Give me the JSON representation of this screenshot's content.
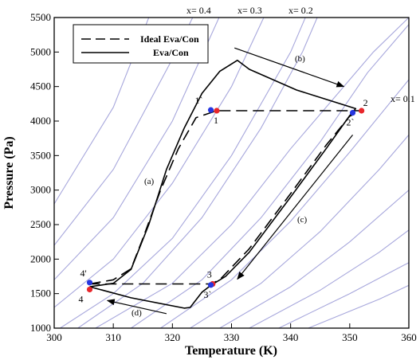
{
  "chart_data": {
    "type": "line",
    "xlabel": "Temperature (K)",
    "ylabel": "Pressure (Pa)",
    "xlim": [
      300,
      360
    ],
    "ylim": [
      1000,
      5500
    ],
    "x_ticks": [
      "300",
      "310",
      "320",
      "330",
      "340",
      "350",
      "360"
    ],
    "y_ticks": [
      "1000",
      "1500",
      "2000",
      "2500",
      "3000",
      "3500",
      "4000",
      "4500",
      "5000",
      "5500"
    ],
    "grid": false,
    "legend": {
      "placement": "top-left",
      "entries": [
        "Ideal Eva/Con",
        "Eva/Con"
      ]
    },
    "colors": {
      "isoline": "#a7a7dc",
      "red_point": "#e8262b",
      "blue_point": "#2636e0",
      "curve": "#000000"
    },
    "isolines": [
      {
        "label": "x= 0.4",
        "points": [
          [
            300,
            1700
          ],
          [
            310,
            2600
          ],
          [
            320,
            4000
          ],
          [
            330,
            5900
          ]
        ]
      },
      {
        "label": "x= 0.3",
        "points": [
          [
            300,
            1300
          ],
          [
            310,
            2000
          ],
          [
            320,
            3100
          ],
          [
            330,
            4500
          ],
          [
            336,
            5600
          ]
        ]
      },
      {
        "label": "x= 0.2",
        "points": [
          [
            301,
            1000
          ],
          [
            310,
            1500
          ],
          [
            320,
            2300
          ],
          [
            330,
            3500
          ],
          [
            340,
            5000
          ],
          [
            343,
            5600
          ]
        ]
      },
      {
        "label": "x= 0.1",
        "points": [
          [
            307,
            1000
          ],
          [
            320,
            1650
          ],
          [
            330,
            2500
          ],
          [
            340,
            3600
          ],
          [
            350,
            4600
          ],
          [
            354,
            5000
          ],
          [
            360,
            5500
          ]
        ]
      },
      {
        "label": "",
        "points": [
          [
            304,
            1000
          ],
          [
            315,
            1650
          ],
          [
            325,
            2600
          ],
          [
            335,
            3900
          ],
          [
            342,
            5000
          ],
          [
            345,
            5600
          ]
        ]
      },
      {
        "label": "",
        "points": [
          [
            313,
            1000
          ],
          [
            325,
            1700
          ],
          [
            335,
            2600
          ],
          [
            345,
            3700
          ],
          [
            353,
            4700
          ],
          [
            360,
            5400
          ]
        ]
      },
      {
        "label": "",
        "points": [
          [
            318,
            1000
          ],
          [
            330,
            1700
          ],
          [
            340,
            2550
          ],
          [
            350,
            3550
          ],
          [
            360,
            4600
          ]
        ]
      },
      {
        "label": "",
        "points": [
          [
            323,
            1000
          ],
          [
            335,
            1650
          ],
          [
            345,
            2400
          ],
          [
            355,
            3300
          ],
          [
            362,
            4000
          ]
        ]
      },
      {
        "label": "",
        "points": [
          [
            328,
            1000
          ],
          [
            340,
            1600
          ],
          [
            350,
            2250
          ],
          [
            360,
            3000
          ]
        ]
      },
      {
        "label": "",
        "points": [
          [
            333,
            1000
          ],
          [
            345,
            1550
          ],
          [
            355,
            2100
          ],
          [
            362,
            2550
          ]
        ]
      },
      {
        "label": "",
        "points": [
          [
            338,
            1000
          ],
          [
            350,
            1500
          ],
          [
            360,
            1950
          ]
        ]
      },
      {
        "label": "",
        "points": [
          [
            343,
            1000
          ],
          [
            355,
            1420
          ],
          [
            362,
            1700
          ]
        ]
      },
      {
        "label": "",
        "points": [
          [
            300,
            2200
          ],
          [
            310,
            3300
          ],
          [
            320,
            4900
          ],
          [
            324,
            5600
          ]
        ]
      },
      {
        "label": "",
        "points": [
          [
            300,
            2800
          ],
          [
            310,
            4200
          ],
          [
            316,
            5500
          ]
        ]
      }
    ],
    "series": [
      {
        "name": "Ideal Eva/Con",
        "style": "dashed",
        "points": [
          [
            306,
            1640
          ],
          [
            310,
            1700
          ],
          [
            313,
            1860
          ],
          [
            315,
            2300
          ],
          [
            318,
            3000
          ],
          [
            321,
            3600
          ],
          [
            324,
            4050
          ],
          [
            327.5,
            4150
          ],
          [
            352,
            4150
          ],
          [
            350,
            4070
          ],
          [
            346,
            3650
          ],
          [
            340,
            2950
          ],
          [
            333,
            2150
          ],
          [
            328,
            1700
          ],
          [
            326.5,
            1640
          ],
          [
            306,
            1640
          ]
        ]
      },
      {
        "name": "Eva/Con",
        "style": "solid",
        "points": [
          [
            306,
            1600
          ],
          [
            310,
            1650
          ],
          [
            313,
            1850
          ],
          [
            316,
            2500
          ],
          [
            319,
            3300
          ],
          [
            322,
            3900
          ],
          [
            325,
            4400
          ],
          [
            328,
            4720
          ],
          [
            331,
            4880
          ],
          [
            333,
            4750
          ],
          [
            341,
            4450
          ],
          [
            351,
            4180
          ],
          [
            350,
            4080
          ],
          [
            346,
            3600
          ],
          [
            340,
            2900
          ],
          [
            333,
            2100
          ],
          [
            329,
            1750
          ],
          [
            326.5,
            1620
          ],
          [
            325,
            1520
          ],
          [
            323,
            1300
          ],
          [
            322,
            1290
          ],
          [
            313,
            1440
          ],
          [
            306,
            1600
          ]
        ]
      }
    ],
    "points": [
      {
        "label": "1",
        "x": 327.5,
        "y": 4150,
        "color": "red"
      },
      {
        "label": "1`",
        "x": 326.5,
        "y": 4160,
        "color": "blue"
      },
      {
        "label": "2",
        "x": 352,
        "y": 4150,
        "color": "red"
      },
      {
        "label": "2`",
        "x": 350.5,
        "y": 4120,
        "color": "blue"
      },
      {
        "label": "3",
        "x": 326.8,
        "y": 1640,
        "color": "red"
      },
      {
        "label": "3`",
        "x": 326.5,
        "y": 1625,
        "color": "blue"
      },
      {
        "label": "4",
        "x": 306,
        "y": 1560,
        "color": "red"
      },
      {
        "label": "4'",
        "x": 306,
        "y": 1660,
        "color": "blue"
      }
    ],
    "segment_labels": [
      "(a)",
      "(b)",
      "(c)",
      "(d)"
    ],
    "arrows": [
      {
        "from": [
          330.5,
          5060
        ],
        "to": [
          349,
          4500
        ]
      },
      {
        "from": [
          350.5,
          3800
        ],
        "to": [
          331,
          1710
        ]
      },
      {
        "from": [
          319,
          1210
        ],
        "to": [
          309,
          1400
        ]
      }
    ]
  }
}
